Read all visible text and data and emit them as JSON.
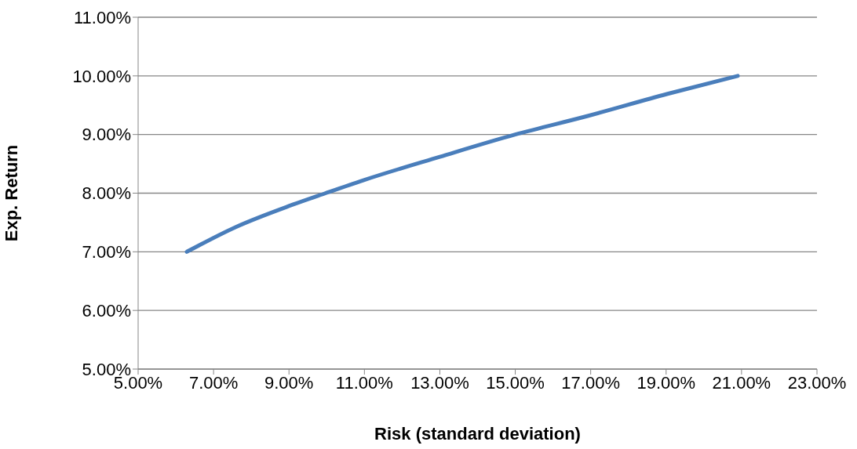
{
  "chart_data": {
    "type": "line",
    "xlabel": "Risk (standard deviation)",
    "ylabel": "Exp. Return",
    "x": [
      6.29,
      7.58,
      9.04,
      9.97,
      10.97,
      13.0,
      15.0,
      16.94,
      19.02,
      20.9
    ],
    "series": [
      {
        "color": "#4a7ebb",
        "values": [
          7.0,
          7.42,
          7.79,
          8.0,
          8.22,
          8.62,
          9.0,
          9.32,
          9.69,
          10.0
        ]
      }
    ],
    "xlim": [
      5,
      23
    ],
    "xticks": [
      {
        "value": 5,
        "label": "5.00%"
      },
      {
        "value": 7,
        "label": "7.00%"
      },
      {
        "value": 9,
        "label": "9.00%"
      },
      {
        "value": 11,
        "label": "11.00%"
      },
      {
        "value": 13,
        "label": "13.00%"
      },
      {
        "value": 15,
        "label": "15.00%"
      },
      {
        "value": 17,
        "label": "17.00%"
      },
      {
        "value": 19,
        "label": "19.00%"
      },
      {
        "value": 21,
        "label": "21.00%"
      },
      {
        "value": 23,
        "label": "23.00%"
      }
    ],
    "ylim": [
      5,
      11
    ],
    "yticks": [
      {
        "value": 5,
        "label": "5.00%"
      },
      {
        "value": 6,
        "label": "6.00%"
      },
      {
        "value": 7,
        "label": "7.00%"
      },
      {
        "value": 8,
        "label": "8.00%"
      },
      {
        "value": 9,
        "label": "9.00%"
      },
      {
        "value": 10,
        "label": "10.00%"
      },
      {
        "value": 11,
        "label": "11.00%"
      }
    ],
    "grid": "y",
    "legend": false,
    "marker": "none",
    "line_style": "solid"
  }
}
